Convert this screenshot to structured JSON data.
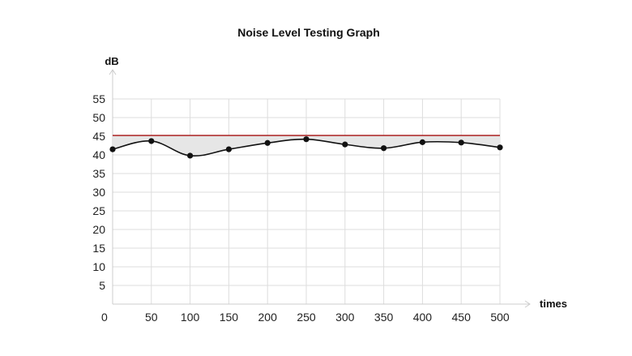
{
  "chart_data": {
    "type": "line",
    "title": "Noise Level Testing Graph",
    "xlabel": "times",
    "ylabel": "dB",
    "x_ticks": [
      0,
      50,
      100,
      150,
      200,
      250,
      300,
      350,
      400,
      450,
      500
    ],
    "y_ticks": [
      5,
      10,
      15,
      20,
      25,
      30,
      35,
      40,
      45,
      50,
      55
    ],
    "xlim": [
      0,
      500
    ],
    "ylim": [
      0,
      55
    ],
    "grid": true,
    "series": [
      {
        "values": [
          41.5,
          43.7,
          39.8,
          41.5,
          43.2,
          44.2,
          42.8,
          41.8,
          43.4,
          43.3,
          42.0
        ],
        "color": "#111111"
      }
    ],
    "threshold": {
      "value": 45.2,
      "color": "#b03030"
    },
    "fill_color": "#e6e6e6"
  }
}
